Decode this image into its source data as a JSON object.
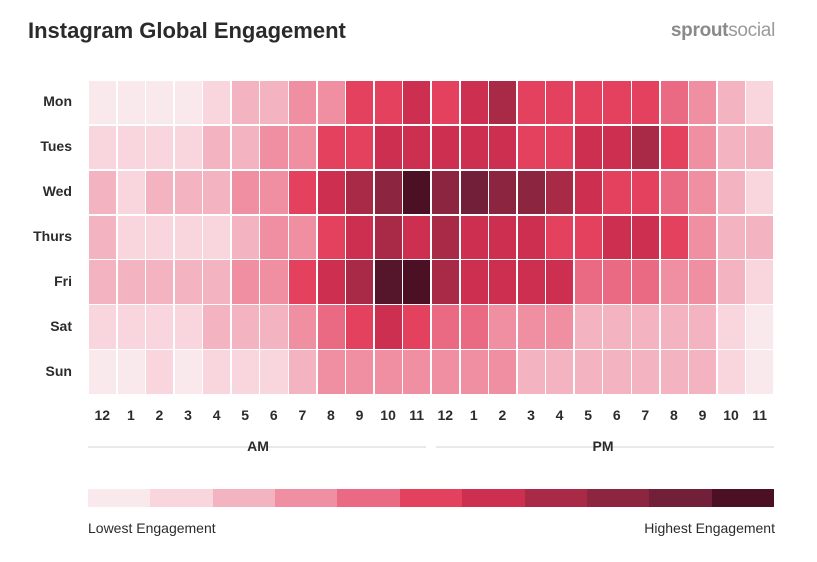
{
  "header": {
    "title": "Instagram Global Engagement",
    "brand_bold": "sprout",
    "brand_light": "social"
  },
  "chart_data": {
    "type": "heatmap",
    "title": "Instagram Global Engagement",
    "y_categories": [
      "Mon",
      "Tues",
      "Wed",
      "Thurs",
      "Fri",
      "Sat",
      "Sun"
    ],
    "x_categories": [
      "12",
      "1",
      "2",
      "3",
      "4",
      "5",
      "6",
      "7",
      "8",
      "9",
      "10",
      "11",
      "12",
      "1",
      "2",
      "3",
      "4",
      "5",
      "6",
      "7",
      "8",
      "9",
      "10",
      "11"
    ],
    "x_groups": [
      {
        "label": "AM",
        "span": 12
      },
      {
        "label": "PM",
        "span": 12
      }
    ],
    "scale_levels": 12,
    "values": [
      [
        0,
        0,
        0,
        0,
        1,
        2,
        2,
        3,
        3,
        5,
        5,
        6,
        5,
        6,
        7,
        5,
        5,
        5,
        5,
        5,
        4,
        3,
        2,
        1
      ],
      [
        1,
        1,
        1,
        1,
        2,
        2,
        3,
        3,
        5,
        5,
        6,
        6,
        6,
        6,
        6,
        5,
        5,
        6,
        6,
        7,
        5,
        3,
        2,
        2
      ],
      [
        2,
        1,
        2,
        2,
        2,
        3,
        3,
        5,
        6,
        7,
        8,
        11,
        8,
        9,
        8,
        8,
        7,
        6,
        5,
        5,
        4,
        3,
        2,
        1
      ],
      [
        2,
        1,
        1,
        1,
        1,
        2,
        3,
        3,
        5,
        6,
        7,
        6,
        7,
        6,
        6,
        6,
        5,
        5,
        6,
        6,
        5,
        3,
        2,
        2
      ],
      [
        2,
        2,
        2,
        2,
        2,
        3,
        3,
        5,
        6,
        7,
        10,
        11,
        7,
        6,
        6,
        6,
        6,
        4,
        4,
        4,
        3,
        3,
        2,
        1
      ],
      [
        1,
        1,
        1,
        1,
        2,
        2,
        2,
        3,
        4,
        5,
        6,
        5,
        4,
        4,
        3,
        3,
        3,
        2,
        2,
        2,
        2,
        2,
        1,
        0
      ],
      [
        0,
        0,
        1,
        0,
        1,
        1,
        1,
        2,
        3,
        3,
        3,
        3,
        3,
        3,
        3,
        2,
        2,
        2,
        2,
        2,
        2,
        2,
        1,
        0
      ]
    ],
    "colors": [
      "#f9e8ec",
      "#f9d6dd",
      "#f4b3c0",
      "#ef8fa1",
      "#e96a82",
      "#e4415f",
      "#cd2f50",
      "#a92a47",
      "#8b2540",
      "#72203a",
      "#55152a",
      "#4b1024"
    ],
    "legend": {
      "low_label": "Lowest Engagement",
      "high_label": "Highest Engagement"
    }
  }
}
